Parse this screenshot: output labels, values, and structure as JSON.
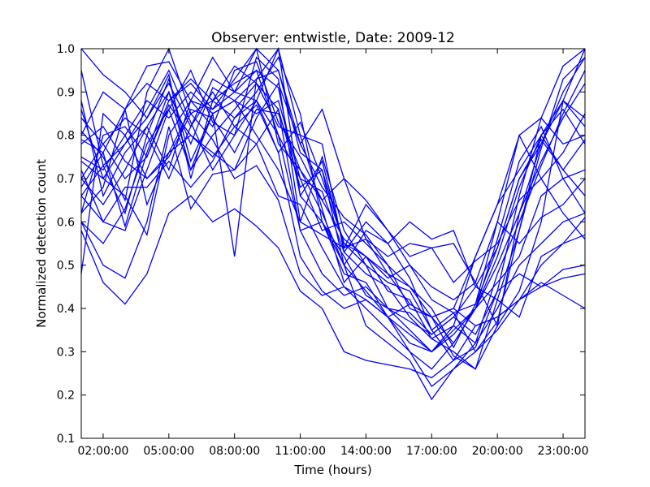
{
  "chart_data": {
    "type": "line",
    "title": "Observer: entwistle, Date: 2009-12",
    "xlabel": "Time (hours)",
    "ylabel": "Normalized detection count",
    "xlim": [
      1,
      24
    ],
    "ylim": [
      0.1,
      1.0
    ],
    "grid": false,
    "legend": "none",
    "line_color": "#0000ff",
    "x_ticks": [
      {
        "value": 2,
        "label": "02:00:00"
      },
      {
        "value": 5,
        "label": "05:00:00"
      },
      {
        "value": 8,
        "label": "08:00:00"
      },
      {
        "value": 11,
        "label": "11:00:00"
      },
      {
        "value": 14,
        "label": "14:00:00"
      },
      {
        "value": 17,
        "label": "17:00:00"
      },
      {
        "value": 20,
        "label": "20:00:00"
      },
      {
        "value": 23,
        "label": "23:00:00"
      }
    ],
    "y_ticks": [
      {
        "value": 0.1,
        "label": "0.1"
      },
      {
        "value": 0.2,
        "label": "0.2"
      },
      {
        "value": 0.3,
        "label": "0.3"
      },
      {
        "value": 0.4,
        "label": "0.4"
      },
      {
        "value": 0.5,
        "label": "0.5"
      },
      {
        "value": 0.6,
        "label": "0.6"
      },
      {
        "value": 0.7,
        "label": "0.7"
      },
      {
        "value": 0.8,
        "label": "0.8"
      },
      {
        "value": 0.9,
        "label": "0.9"
      },
      {
        "value": 1.0,
        "label": "1.0"
      }
    ],
    "x": [
      1,
      2,
      3,
      4,
      5,
      6,
      7,
      8,
      9,
      10,
      11,
      12,
      13,
      14,
      15,
      16,
      17,
      18,
      19,
      20,
      21,
      22,
      23,
      24
    ],
    "series": [
      {
        "values": [
          0.48,
          0.85,
          0.8,
          0.88,
          0.84,
          0.9,
          0.85,
          0.88,
          0.93,
          1.0,
          0.8,
          0.78,
          0.53,
          0.48,
          0.45,
          0.38,
          0.33,
          0.3,
          0.26,
          0.36,
          0.44,
          0.6,
          0.88,
          1.0
        ]
      },
      {
        "values": [
          0.6,
          0.55,
          0.63,
          0.78,
          0.86,
          0.72,
          0.85,
          0.52,
          0.93,
          0.95,
          0.76,
          0.72,
          0.55,
          0.52,
          0.44,
          0.42,
          0.33,
          0.36,
          0.32,
          0.48,
          0.6,
          0.73,
          0.85,
          0.95
        ]
      },
      {
        "values": [
          0.74,
          0.7,
          0.78,
          0.86,
          0.95,
          0.83,
          0.72,
          0.8,
          0.88,
          1.0,
          0.66,
          0.6,
          0.52,
          0.43,
          0.4,
          0.39,
          0.34,
          0.38,
          0.45,
          0.54,
          0.7,
          0.78,
          0.9,
          0.98
        ]
      },
      {
        "values": [
          0.81,
          0.75,
          0.65,
          0.9,
          1.0,
          0.85,
          0.88,
          0.92,
          0.95,
          0.8,
          0.7,
          0.58,
          0.6,
          0.55,
          0.5,
          0.4,
          0.38,
          0.32,
          0.4,
          0.52,
          0.68,
          0.8,
          0.86,
          0.78
        ]
      },
      {
        "values": [
          0.7,
          0.78,
          0.84,
          0.8,
          0.7,
          0.82,
          0.9,
          0.82,
          0.87,
          0.76,
          0.52,
          0.44,
          0.4,
          0.42,
          0.38,
          0.32,
          0.3,
          0.34,
          0.4,
          0.56,
          0.74,
          0.82,
          0.7,
          0.62
        ]
      },
      {
        "values": [
          0.66,
          0.6,
          0.58,
          0.72,
          0.86,
          0.95,
          0.83,
          0.8,
          0.98,
          0.93,
          0.6,
          0.75,
          0.58,
          0.5,
          0.46,
          0.44,
          0.35,
          0.28,
          0.31,
          0.44,
          0.66,
          0.84,
          0.96,
          1.0
        ]
      },
      {
        "values": [
          0.86,
          0.7,
          0.66,
          0.57,
          0.8,
          0.88,
          0.86,
          0.93,
          1.0,
          0.78,
          0.72,
          0.62,
          0.5,
          0.44,
          0.38,
          0.34,
          0.3,
          0.36,
          0.52,
          0.64,
          0.8,
          0.7,
          0.62,
          0.56
        ]
      },
      {
        "values": [
          0.62,
          0.8,
          0.82,
          0.75,
          0.87,
          0.8,
          0.75,
          0.82,
          0.78,
          0.86,
          0.58,
          0.6,
          0.48,
          0.46,
          0.38,
          0.3,
          0.26,
          0.32,
          0.4,
          0.5,
          0.62,
          0.74,
          0.84,
          0.92
        ]
      },
      {
        "values": [
          0.7,
          0.64,
          0.72,
          0.82,
          0.9,
          0.72,
          0.8,
          0.86,
          0.92,
          0.82,
          0.8,
          0.63,
          0.46,
          0.52,
          0.48,
          0.41,
          0.38,
          0.29,
          0.26,
          0.42,
          0.58,
          0.8,
          0.72,
          0.66
        ]
      },
      {
        "values": [
          0.58,
          0.46,
          0.41,
          0.48,
          0.62,
          0.66,
          0.6,
          0.63,
          0.59,
          0.54,
          0.44,
          0.4,
          0.3,
          0.28,
          0.27,
          0.26,
          0.24,
          0.28,
          0.36,
          0.38,
          0.42,
          0.46,
          0.43,
          0.4
        ]
      },
      {
        "values": [
          0.6,
          0.5,
          0.47,
          0.6,
          0.82,
          0.63,
          0.71,
          0.72,
          0.78,
          0.66,
          0.64,
          0.54,
          0.45,
          0.4,
          0.35,
          0.3,
          0.22,
          0.26,
          0.3,
          0.35,
          0.42,
          0.45,
          0.47,
          0.48
        ]
      },
      {
        "values": [
          0.78,
          0.82,
          0.74,
          0.7,
          0.75,
          0.85,
          0.79,
          0.7,
          0.73,
          0.65,
          0.48,
          0.43,
          0.45,
          0.42,
          0.38,
          0.41,
          0.38,
          0.4,
          0.36,
          0.38,
          0.42,
          0.5,
          0.55,
          0.57
        ]
      },
      {
        "values": [
          0.72,
          0.6,
          0.68,
          0.68,
          0.74,
          0.68,
          0.74,
          0.84,
          0.88,
          0.8,
          0.58,
          0.48,
          0.43,
          0.45,
          0.4,
          0.37,
          0.34,
          0.38,
          0.34,
          0.44,
          0.48,
          0.45,
          0.49,
          0.5
        ]
      },
      {
        "values": [
          0.79,
          0.76,
          0.86,
          0.92,
          0.88,
          0.93,
          0.88,
          0.84,
          0.9,
          0.98,
          0.85,
          0.6,
          0.5,
          0.36,
          0.32,
          0.28,
          0.19,
          0.26,
          0.32,
          0.4,
          0.5,
          0.55,
          0.6,
          0.62
        ]
      },
      {
        "values": [
          0.8,
          0.9,
          0.86,
          0.96,
          0.97,
          0.88,
          0.98,
          0.9,
          1.0,
          0.95,
          0.78,
          0.86,
          0.7,
          0.56,
          0.48,
          0.45,
          0.38,
          0.4,
          0.52,
          0.64,
          0.72,
          0.8,
          0.88,
          0.84
        ]
      },
      {
        "values": [
          0.95,
          0.73,
          0.78,
          0.84,
          0.92,
          0.82,
          0.93,
          0.9,
          0.88,
          0.76,
          0.83,
          0.7,
          0.55,
          0.5,
          0.4,
          0.35,
          0.3,
          0.35,
          0.4,
          0.46,
          0.52,
          0.66,
          0.7,
          0.72
        ]
      },
      {
        "values": [
          0.88,
          0.66,
          0.76,
          0.82,
          0.72,
          0.88,
          0.82,
          0.95,
          0.97,
          0.83,
          0.75,
          0.65,
          0.56,
          0.52,
          0.47,
          0.5,
          0.42,
          0.39,
          0.3,
          0.37,
          0.58,
          0.77,
          0.93,
          0.98
        ]
      },
      {
        "values": [
          0.75,
          0.72,
          0.8,
          0.7,
          0.76,
          0.8,
          0.76,
          0.72,
          0.84,
          0.92,
          0.78,
          0.68,
          0.61,
          0.57,
          0.5,
          0.45,
          0.4,
          0.31,
          0.41,
          0.54,
          0.7,
          0.79,
          0.72,
          0.79
        ]
      },
      {
        "values": [
          0.68,
          0.76,
          0.59,
          0.76,
          0.9,
          0.78,
          0.91,
          0.88,
          0.85,
          0.88,
          0.7,
          0.67,
          0.53,
          0.6,
          0.55,
          0.47,
          0.35,
          0.39,
          0.41,
          0.6,
          0.8,
          0.84,
          0.78,
          0.8
        ]
      },
      {
        "values": [
          0.84,
          0.78,
          0.7,
          0.75,
          0.88,
          0.92,
          0.86,
          0.9,
          0.95,
          0.91,
          0.66,
          0.74,
          0.54,
          0.56,
          0.52,
          0.55,
          0.54,
          0.46,
          0.51,
          0.55,
          0.65,
          0.7,
          0.76,
          0.85
        ]
      },
      {
        "values": [
          0.66,
          0.73,
          0.62,
          0.8,
          0.93,
          0.74,
          0.85,
          0.88,
          0.8,
          0.72,
          0.6,
          0.57,
          0.54,
          0.64,
          0.58,
          0.5,
          0.45,
          0.42,
          0.46,
          0.6,
          0.55,
          0.61,
          0.64,
          0.7
        ]
      },
      {
        "values": [
          0.62,
          0.68,
          0.86,
          0.64,
          0.76,
          0.86,
          0.84,
          0.76,
          0.86,
          0.85,
          0.72,
          0.65,
          0.7,
          0.65,
          0.58,
          0.52,
          0.54,
          0.55,
          0.46,
          0.36,
          0.62,
          0.78,
          0.88,
          0.82
        ]
      },
      {
        "values": [
          1.0,
          0.94,
          0.9,
          0.84,
          0.94,
          0.7,
          0.88,
          0.96,
          0.92,
          0.86,
          0.68,
          0.72,
          0.5,
          0.58,
          0.55,
          0.6,
          0.56,
          0.58,
          0.45,
          0.42,
          0.38,
          0.52,
          0.55,
          0.61
        ]
      }
    ]
  }
}
